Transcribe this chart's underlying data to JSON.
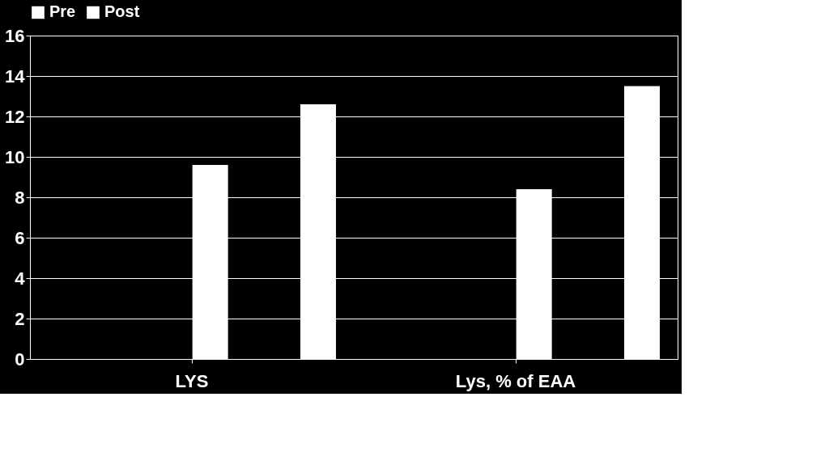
{
  "chart_data": {
    "type": "bar",
    "categories": [
      "LYS",
      "Lys, % of EAA"
    ],
    "series": [
      {
        "name": "Pre",
        "color": "#ffffff",
        "values": [
          9.6,
          8.4
        ]
      },
      {
        "name": "Post",
        "color": "#ffffff",
        "values": [
          12.6,
          13.5
        ]
      }
    ],
    "ylim": [
      0,
      16
    ],
    "yticks": [
      0,
      2,
      4,
      6,
      8,
      10,
      12,
      14,
      16
    ],
    "grid": "y",
    "legend": "top"
  }
}
